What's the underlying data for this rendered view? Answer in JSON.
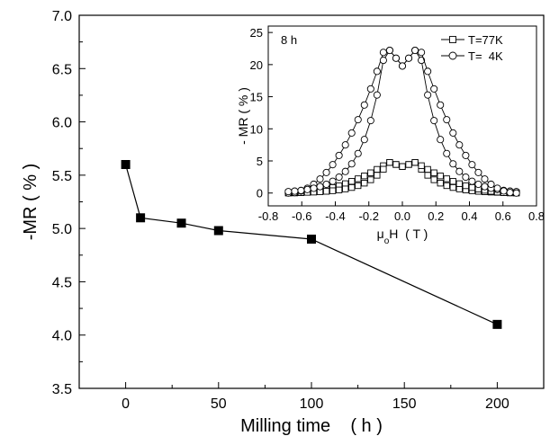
{
  "chart_data": [
    {
      "type": "line",
      "title": "",
      "xlabel": "Milling time    ( h )",
      "ylabel": "-MR ( % )",
      "xlim": [
        -25,
        225
      ],
      "ylim": [
        3.5,
        7.0
      ],
      "xticks": [
        0,
        50,
        100,
        150,
        200
      ],
      "xtick_labels": [
        "0",
        "50",
        "100",
        "150",
        "200"
      ],
      "yticks": [
        3.5,
        4.0,
        4.5,
        5.0,
        5.5,
        6.0,
        6.5,
        7.0
      ],
      "ytick_labels": [
        "3.5",
        "4.0",
        "4.5",
        "5.0",
        "5.5",
        "6.0",
        "6.5",
        "7.0"
      ],
      "grid": false,
      "series": [
        {
          "marker": "filled-square",
          "color": "#000000",
          "x": [
            0,
            8,
            30,
            50,
            100,
            200
          ],
          "y": [
            5.6,
            5.1,
            5.05,
            4.98,
            4.9,
            4.1
          ]
        }
      ]
    },
    {
      "type": "line",
      "title": "",
      "annotation": "8 h",
      "xlabel_main": "μ",
      "xlabel_sub": "o",
      "xlabel_rest": "H  ( T )",
      "ylabel": "- MR ( % )",
      "xlim": [
        -0.8,
        0.8
      ],
      "ylim": [
        -2,
        26
      ],
      "xticks": [
        -0.8,
        -0.6,
        -0.4,
        -0.2,
        0.0,
        0.2,
        0.4,
        0.6,
        0.8
      ],
      "xtick_labels": [
        "-0.8",
        "-0.6",
        "-0.4",
        "-0.2",
        "0.0",
        "0.2",
        "0.4",
        "0.6",
        "0.8"
      ],
      "yticks": [
        0,
        5,
        10,
        15,
        20,
        25
      ],
      "ytick_labels": [
        "0",
        "5",
        "10",
        "15",
        "20",
        "25"
      ],
      "legend_position": "top-right",
      "grid": false,
      "series": [
        {
          "name": "T=77K",
          "marker": "open-square",
          "peak_field": 0.08,
          "peak": 4.8,
          "max_field": 0.68,
          "floor": 0.0
        },
        {
          "name": "T=  4K",
          "marker": "open-circle",
          "peak_field": 0.1,
          "peak": 23.0,
          "max_field": 0.68,
          "floor": 0.0
        }
      ]
    }
  ]
}
